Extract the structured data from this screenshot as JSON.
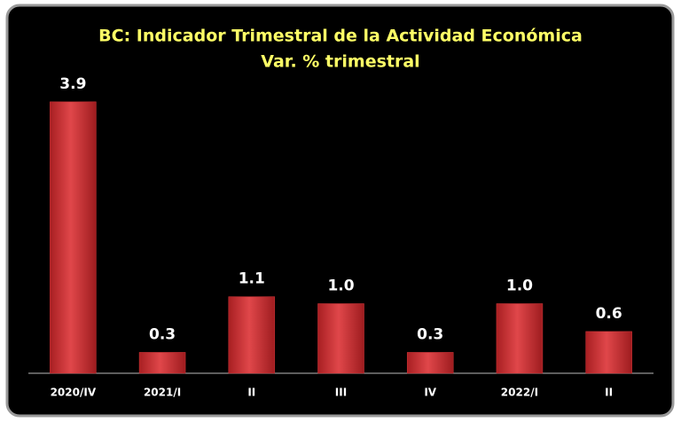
{
  "chart_data": {
    "type": "bar",
    "title": "BC: Indicador Trimestral de la Actividad Económica",
    "subtitle": "Var. % trimestral",
    "categories": [
      "2020/IV",
      "2021/I",
      "II",
      "III",
      "IV",
      "2022/I",
      "II"
    ],
    "values": [
      3.9,
      0.3,
      1.1,
      1.0,
      0.3,
      1.0,
      0.6
    ],
    "value_labels": [
      "3.9",
      "0.3",
      "1.1",
      "1.0",
      "0.3",
      "1.0",
      "0.6"
    ],
    "color": "#d8363a"
  }
}
